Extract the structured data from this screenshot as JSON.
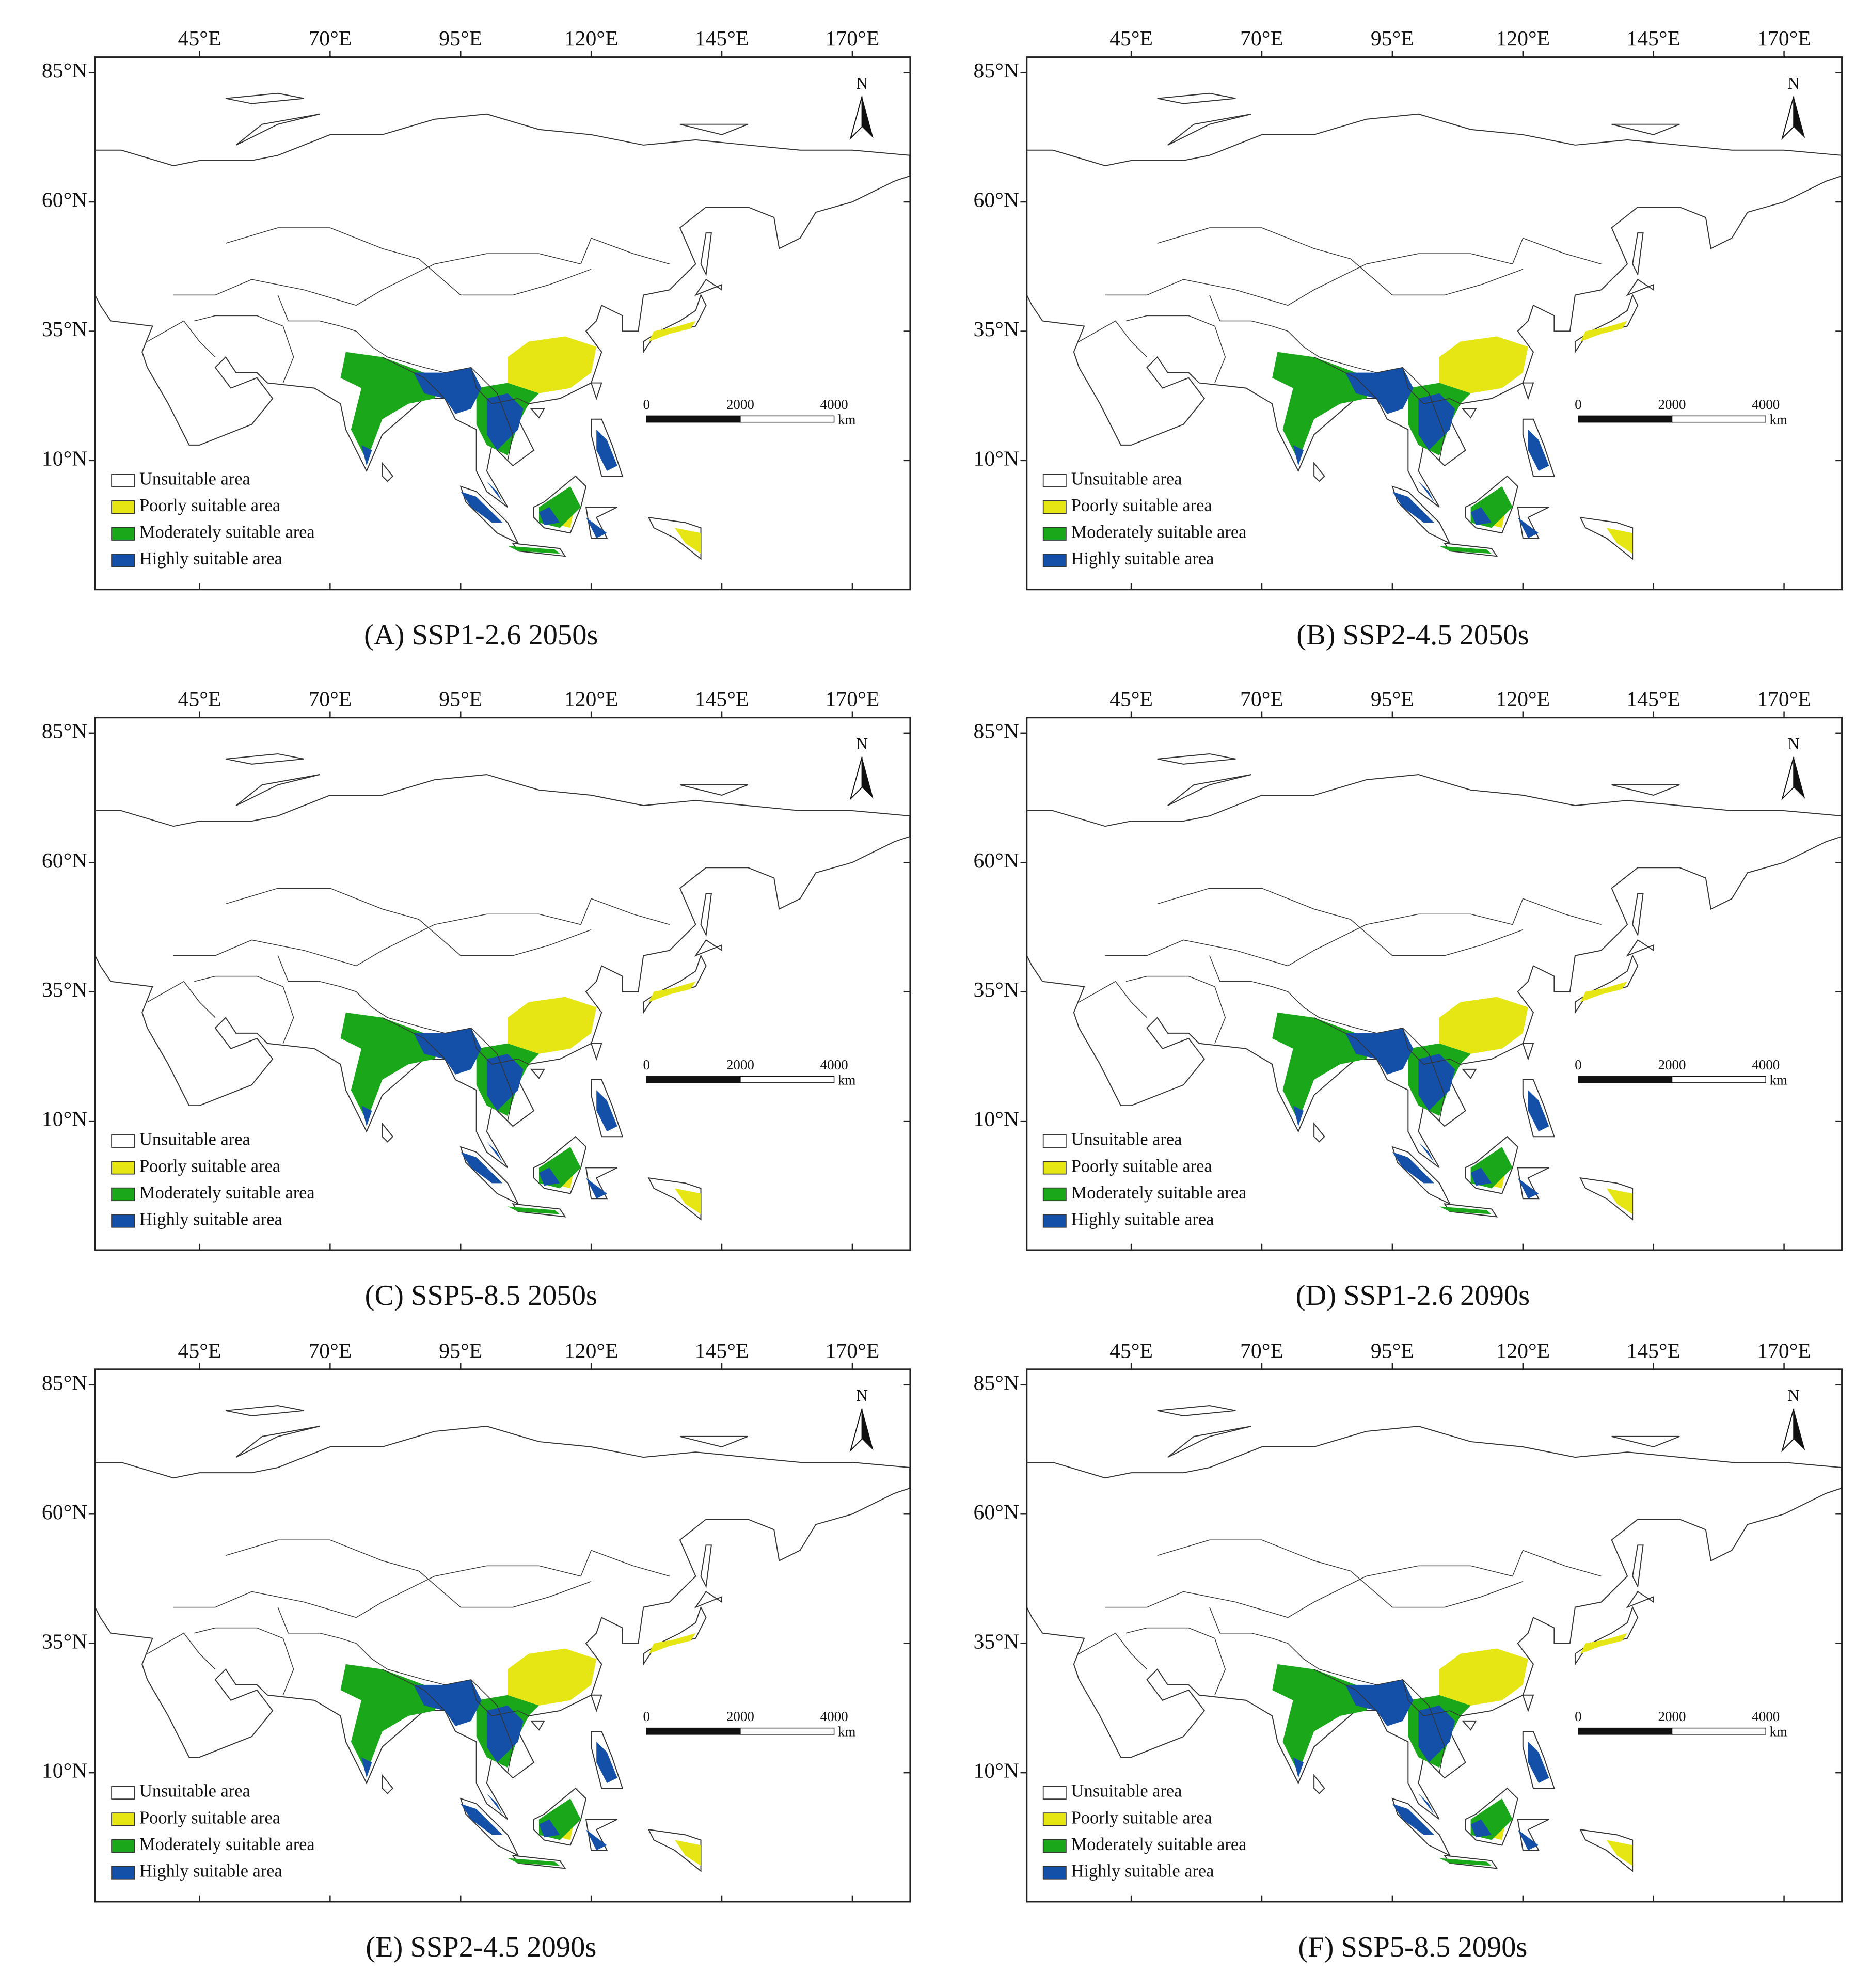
{
  "axes": {
    "lon_labels": [
      "45°E",
      "70°E",
      "95°E",
      "120°E",
      "145°E",
      "170°E"
    ],
    "lat_labels": [
      "85°N",
      "60°N",
      "35°N",
      "10°N"
    ]
  },
  "legend": [
    "Unsuitable area",
    "Poorly suitable area",
    "Moderately suitable area",
    "Highly suitable area"
  ],
  "scale_bar": {
    "labels": [
      "0",
      "2000",
      "4000"
    ],
    "unit": "km"
  },
  "north": "N",
  "panels": [
    {
      "caption": "(A) SSP1-2.6 2050s"
    },
    {
      "caption": "(B) SSP2-4.5 2050s"
    },
    {
      "caption": "(C) SSP5-8.5 2050s"
    },
    {
      "caption": "(D) SSP1-2.6 2090s"
    },
    {
      "caption": "(E) SSP2-4.5 2090s"
    },
    {
      "caption": "(F) SSP5-8.5 2090s"
    }
  ]
}
